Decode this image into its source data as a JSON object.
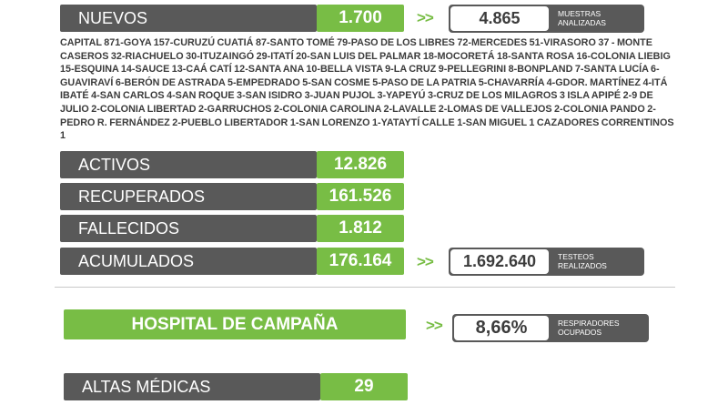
{
  "nuevos": {
    "label": "NUEVOS",
    "value": "1.700"
  },
  "muestras": {
    "value": "4.865",
    "label_line1": "MUESTRAS",
    "label_line2": "ANALIZADAS"
  },
  "localities_text": "CAPITAL 871-GOYA 157-CURUZÚ CUATIÁ 87-SANTO TOMÉ 79-PASO DE LOS LIBRES 72-MERCEDES 51-VIRASORO 37 - MONTE CASEROS 32-RIACHUELO 30-ITUZAINGÓ 29-ITATÍ 20-SAN LUIS DEL PALMAR 18-MOCORETÁ 18-SANTA ROSA 16-COLONIA LIEBIG 15-ESQUINA 14-SAUCE 13-CAÁ CATÍ 12-SANTA ANA 10-BELLA VISTA 9-LA CRUZ 9-PELLEGRINI 8-BONPLAND 7-SANTA LUCÍA 6-GUAVIRAVÍ 6-BERÓN DE ASTRADA 5-EMPEDRADO 5-SAN COSME 5-PASO DE LA PATRIA 5-CHAVARRÍA 4-GDOR. MARTÍNEZ 4-ITÁ IBATÉ 4-SAN CARLOS 4-SAN ROQUE 3-SAN ISIDRO 3-JUAN PUJOL 3-YAPEYÚ 3-CRUZ DE LOS MILAGROS 3 ISLA APIPÉ 2-9 DE JULIO 2-COLONIA LIBERTAD 2-GARRUCHOS 2-COLONIA CAROLINA 2-LAVALLE 2-LOMAS DE VALLEJOS 2-COLONIA PANDO 2-PEDRO R. FERNÁNDEZ 2-PUEBLO LIBERTADOR 1-SAN LORENZO 1-YATAYTÍ CALLE 1-SAN MIGUEL 1 CAZADORES CORRENTINOS 1",
  "stats": [
    {
      "label": "ACTIVOS",
      "value": "12.826"
    },
    {
      "label": "RECUPERADOS",
      "value": "161.526"
    },
    {
      "label": "FALLECIDOS",
      "value": "1.812"
    },
    {
      "label": "ACUMULADOS",
      "value": "176.164"
    }
  ],
  "testeos": {
    "value": "1.692.640",
    "label_line1": "TESTEOS",
    "label_line2": "REALIZADOS"
  },
  "hospital": {
    "label": "HOSPITAL DE CAMPAÑA"
  },
  "respiradores": {
    "value": "8,66%",
    "label_line1": "RESPIRADORES",
    "label_line2": "OCUPADOS"
  },
  "altas": {
    "label": "ALTAS MÉDICAS",
    "value": "29"
  },
  "chevron": ">>",
  "colors": {
    "dark": "#595959",
    "green": "#78bd45",
    "text": "#3c3c3c"
  }
}
